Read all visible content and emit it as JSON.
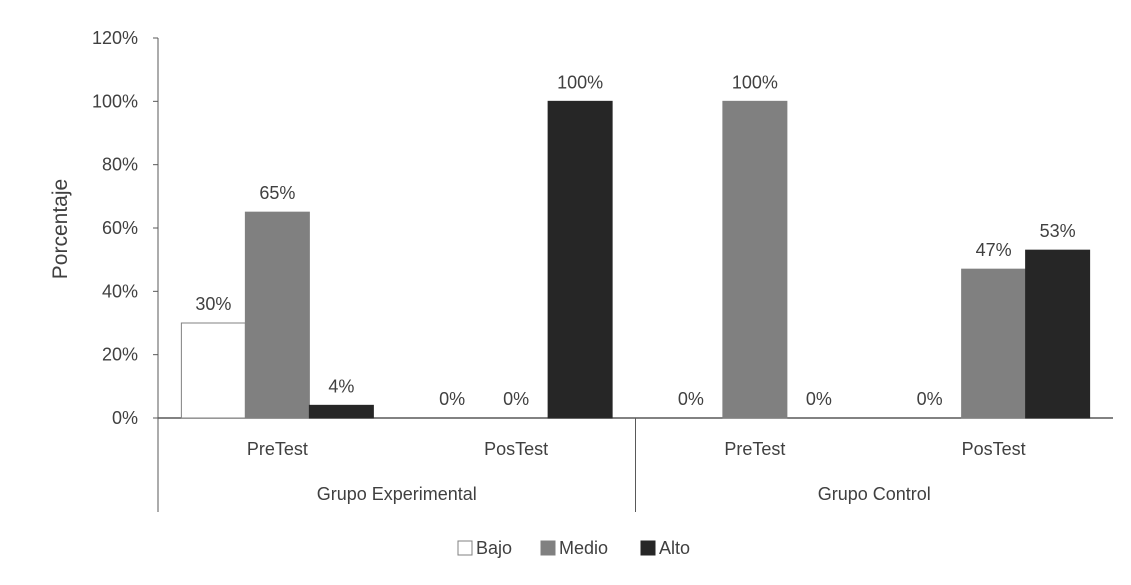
{
  "chart_data": {
    "type": "bar",
    "ylabel": "Porcentaje",
    "xlabel": "",
    "ylim": [
      0,
      120
    ],
    "yticks": [
      "0%",
      "20%",
      "40%",
      "60%",
      "80%",
      "100%",
      "120%"
    ],
    "tick_values": [
      0,
      20,
      40,
      60,
      80,
      100,
      120
    ],
    "groups": [
      {
        "label": "Grupo Experimental",
        "subgroups": [
          "PreTest",
          "PosTest"
        ]
      },
      {
        "label": "Grupo Control",
        "subgroups": [
          "PreTest",
          "PosTest"
        ]
      }
    ],
    "categories": [
      "Grupo Experimental - PreTest",
      "Grupo Experimental - PosTest",
      "Grupo Control - PreTest",
      "Grupo Control - PosTest"
    ],
    "series": [
      {
        "name": "Bajo",
        "color": "#ffffff",
        "stroke": "#808080",
        "values": [
          30,
          0,
          0,
          0
        ],
        "labels": [
          "30%",
          "0%",
          "0%",
          "0%"
        ]
      },
      {
        "name": "Medio",
        "color": "#808080",
        "stroke": "#808080",
        "values": [
          65,
          0,
          100,
          47
        ],
        "labels": [
          "65%",
          "0%",
          "100%",
          "47%"
        ]
      },
      {
        "name": "Alto",
        "color": "#262626",
        "stroke": "#262626",
        "values": [
          4,
          100,
          0,
          53
        ],
        "labels": [
          "4%",
          "100%",
          "0%",
          "53%"
        ]
      }
    ],
    "legend_position": "bottom",
    "grid": false
  }
}
